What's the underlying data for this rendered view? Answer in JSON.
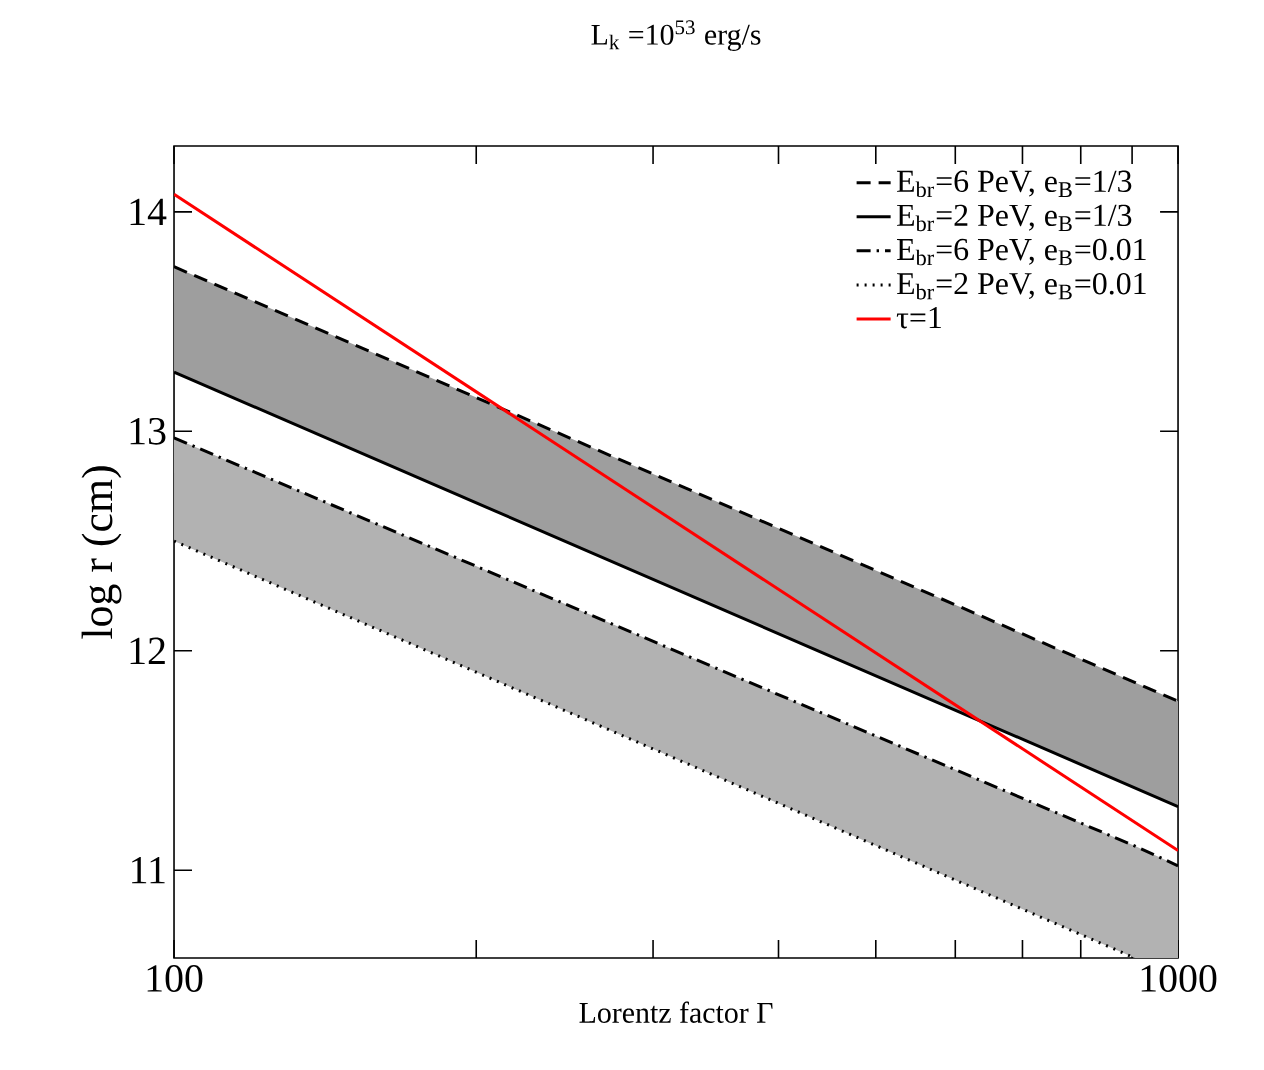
{
  "chart_data": {
    "type": "line",
    "title": "L$_{k}$ =10$^{53}$ erg/s",
    "xlabel": "Lorentz factor  Γ",
    "ylabel": "log r (cm)",
    "log": "x",
    "xlim": [
      100,
      1000
    ],
    "ylim": [
      10.6,
      14.3
    ],
    "xticks": [
      100,
      {
        "value": 200,
        "label": null
      },
      {
        "value": 300,
        "label": null
      },
      {
        "value": 400,
        "label": null
      },
      {
        "value": 500,
        "label": null
      },
      {
        "value": 600,
        "label": null
      },
      {
        "value": 700,
        "label": null
      },
      {
        "value": 800,
        "label": null
      },
      {
        "value": 900,
        "label": null
      },
      1000
    ],
    "yticks": [
      11,
      12,
      13,
      14
    ],
    "grid": false,
    "legend": "top right",
    "marker": "none",
    "series": [
      {
        "name": "E$_{br}$=6 PeV, e$_{B}$=1/3",
        "color": "#000000",
        "line_style": "dashed",
        "x": [
          100,
          1000
        ],
        "values": [
          13.75,
          11.77
        ],
        "upper": [
          13.75,
          11.77
        ],
        "lower": [
          13.27,
          11.29
        ]
      },
      {
        "name": "E$_{br}$=2 PeV, e$_{B}$=1/3",
        "color": "#000000",
        "line_style": "solid",
        "x": [
          100,
          1000
        ],
        "values": [
          13.27,
          11.29
        ]
      },
      {
        "name": "E$_{br}$=6 PeV, e$_{B}$=0.01",
        "color": "#000000",
        "line_style": "dashdotted",
        "x": [
          100,
          906,
          1000
        ],
        "values": [
          12.97,
          11.11,
          11.02
        ],
        "upper": [
          12.97,
          11.11,
          11.02
        ],
        "lower": [
          12.5,
          10.6,
          10.6
        ]
      },
      {
        "name": "E$_{br}$=2 PeV, e$_{B}$=0.01",
        "color": "#000000",
        "line_style": "dotted",
        "x": [
          100,
          906
        ],
        "values": [
          12.5,
          10.6
        ]
      },
      {
        "name": "τ=1",
        "color": "#ff0000",
        "line_style": "solid",
        "x": [
          100,
          1000
        ],
        "values": [
          14.08,
          11.09
        ]
      }
    ]
  }
}
